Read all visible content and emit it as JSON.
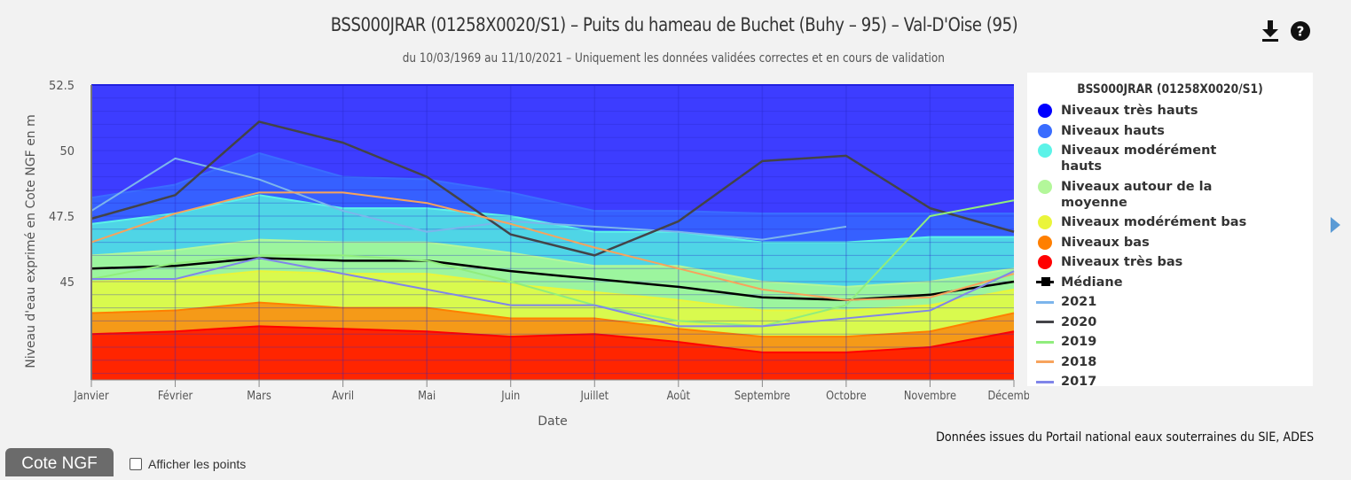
{
  "header": {
    "title": "BSS000JRAR (01258X0020/S1) – Puits du hameau de Buchet (Buhy – 95) – Val-D'Oise (95)",
    "subtitle": "du 10/03/1969 au 11/10/2021 – Uniquement les données validées correctes et en cours de validation",
    "icons": [
      "download-icon",
      "help-icon"
    ]
  },
  "legend": {
    "title": "BSS000JRAR (01258X0020/S1)",
    "items": [
      {
        "label": "Niveaux très hauts",
        "type": "dot",
        "color": "#0000ff"
      },
      {
        "label": "Niveaux hauts",
        "type": "dot",
        "color": "#3a6cff"
      },
      {
        "label": "Niveaux modérément hauts",
        "type": "dot",
        "color": "#5cf3e8"
      },
      {
        "label": "Niveaux autour de la moyenne",
        "type": "dot",
        "color": "#b3f79a"
      },
      {
        "label": "Niveaux modérément bas",
        "type": "dot",
        "color": "#eaf53a"
      },
      {
        "label": "Niveaux bas",
        "type": "dot",
        "color": "#ff7f00"
      },
      {
        "label": "Niveaux très bas",
        "type": "dot",
        "color": "#ff0000"
      },
      {
        "label": "Médiane",
        "type": "median",
        "color": "#000000"
      },
      {
        "label": "2021",
        "type": "line",
        "color": "#7cb5ec"
      },
      {
        "label": "2020",
        "type": "line",
        "color": "#434348"
      },
      {
        "label": "2019",
        "type": "line",
        "color": "#90ed7d"
      },
      {
        "label": "2018",
        "type": "line",
        "color": "#f7a35c"
      },
      {
        "label": "2017",
        "type": "line",
        "color": "#8085e9"
      }
    ]
  },
  "footer": {
    "source": "Données issues du Portail national eaux souterraines du SIE, ADES",
    "cote_button": "Cote NGF",
    "checkbox_label": "Afficher les points",
    "checkbox_checked": false
  },
  "chart_data": {
    "type": "area",
    "title": "BSS000JRAR (01258X0020/S1) – Puits du hameau de Buchet (Buhy – 95) – Val-D'Oise (95)",
    "subtitle": "du 10/03/1969 au 11/10/2021 – Uniquement les données validées correctes et en cours de validation",
    "xlabel": "Date",
    "ylabel": "Niveau d'eau exprimé en Cote NGF en m",
    "categories": [
      "Janvier",
      "Février",
      "Mars",
      "Avril",
      "Mai",
      "Juin",
      "Juillet",
      "Août",
      "Septembre",
      "Octobre",
      "Novembre",
      "Décembre"
    ],
    "yticks": [
      45,
      47.5,
      50,
      52.5
    ],
    "ylim": [
      41.25,
      52.5
    ],
    "grid": true,
    "legend_position": "right",
    "bands": [
      {
        "name": "Niveaux très hauts",
        "fill": "#3d3dff",
        "upper": [
          52.5,
          52.5,
          52.5,
          52.5,
          52.5,
          52.5,
          52.5,
          52.5,
          52.5,
          52.5,
          52.5,
          52.5
        ]
      },
      {
        "name": "Niveaux hauts",
        "fill": "#3660ff",
        "edge": "#3a6cff",
        "upper": [
          48.2,
          48.7,
          49.9,
          49.0,
          48.9,
          48.4,
          47.7,
          47.7,
          47.6,
          47.6,
          47.6,
          47.6
        ]
      },
      {
        "name": "Niveaux modérément hauts",
        "fill": "#4fd5e6",
        "edge": "#5cf3e8",
        "upper": [
          47.2,
          47.6,
          48.3,
          47.8,
          47.8,
          47.5,
          46.9,
          46.9,
          46.5,
          46.5,
          46.7,
          46.7
        ]
      },
      {
        "name": "Niveaux autour de la moyenne",
        "fill": "#9cf59e",
        "edge": "#b3f79a",
        "upper": [
          46.0,
          46.2,
          46.6,
          46.5,
          46.5,
          46.1,
          45.6,
          45.6,
          45.0,
          44.8,
          45.0,
          45.5
        ]
      },
      {
        "name": "Niveaux modérément bas",
        "fill": "#d9fa4e",
        "edge": "#eaf53a",
        "upper": [
          45.0,
          45.1,
          45.4,
          45.3,
          45.3,
          44.9,
          44.6,
          44.3,
          43.9,
          43.9,
          44.1,
          44.7
        ]
      },
      {
        "name": "Niveaux bas",
        "fill": "#f59a18",
        "edge": "#ff7f00",
        "upper": [
          43.8,
          43.9,
          44.2,
          44.0,
          44.0,
          43.6,
          43.6,
          43.2,
          42.9,
          42.9,
          43.1,
          43.8
        ]
      },
      {
        "name": "Niveaux très bas",
        "fill": "#ff2500",
        "edge": "#ff0000",
        "upper": [
          43.0,
          43.1,
          43.3,
          43.2,
          43.1,
          42.9,
          43.0,
          42.7,
          42.3,
          42.3,
          42.5,
          43.1
        ]
      }
    ],
    "series": [
      {
        "name": "Médiane",
        "color": "#000000",
        "width": 2.5,
        "values": [
          45.5,
          45.6,
          45.9,
          45.8,
          45.8,
          45.4,
          45.1,
          44.8,
          44.4,
          44.3,
          44.5,
          45.0
        ]
      },
      {
        "name": "2021",
        "color": "#7cb5ec",
        "width": 2,
        "values": [
          47.7,
          49.7,
          48.9,
          47.7,
          46.9,
          47.3,
          47.1,
          46.9,
          46.6,
          47.1,
          null,
          null
        ]
      },
      {
        "name": "2020",
        "color": "#434348",
        "width": 2.5,
        "values": [
          47.4,
          48.3,
          51.1,
          50.3,
          49.0,
          46.8,
          46.0,
          47.3,
          49.6,
          49.8,
          47.8,
          46.9
        ]
      },
      {
        "name": "2019",
        "color": "#90ed7d",
        "width": 2,
        "values": [
          45.1,
          45.7,
          46.0,
          46.0,
          45.8,
          45.0,
          44.1,
          43.5,
          43.3,
          44.1,
          47.5,
          48.1
        ]
      },
      {
        "name": "2018",
        "color": "#f7a35c",
        "width": 2,
        "values": [
          46.5,
          47.6,
          48.4,
          48.4,
          48.0,
          47.2,
          46.3,
          45.5,
          44.7,
          44.3,
          44.4,
          45.3
        ]
      },
      {
        "name": "2017",
        "color": "#8085e9",
        "width": 2,
        "values": [
          45.1,
          45.1,
          45.9,
          45.3,
          44.7,
          44.1,
          44.1,
          43.3,
          43.3,
          43.6,
          43.9,
          45.4
        ]
      }
    ]
  }
}
